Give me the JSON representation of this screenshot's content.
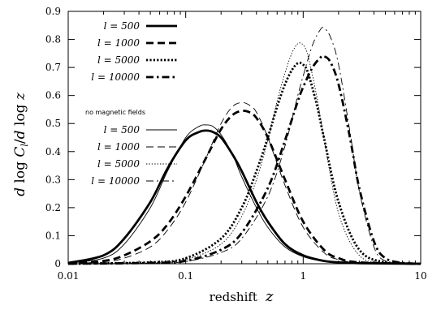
{
  "chart_data": {
    "type": "line",
    "x_scale": "log",
    "xlim": [
      0.01,
      10
    ],
    "ylim": [
      0,
      0.9
    ],
    "x_ticks": [
      {
        "value": 0.01,
        "label": "0.01"
      },
      {
        "value": 0.1,
        "label": "0.1"
      },
      {
        "value": 1,
        "label": "1"
      },
      {
        "value": 10,
        "label": "10"
      }
    ],
    "y_ticks": [
      {
        "value": 0,
        "label": "0"
      },
      {
        "value": 0.1,
        "label": "0.1"
      },
      {
        "value": 0.2,
        "label": "0.2"
      },
      {
        "value": 0.3,
        "label": "0.3"
      },
      {
        "value": 0.4,
        "label": "0.4"
      },
      {
        "value": 0.5,
        "label": "0.5"
      },
      {
        "value": 0.6,
        "label": "0.6"
      },
      {
        "value": 0.7,
        "label": "0.7"
      },
      {
        "value": 0.8,
        "label": "0.8"
      },
      {
        "value": 0.9,
        "label": "0.9"
      }
    ],
    "xlabel": "redshift",
    "xlabel_symbol": "z",
    "ylabel": "d log C_l / d log z",
    "grid": false,
    "legend_position": "top-left",
    "legend_note": "no magnetic fields",
    "series": [
      {
        "name": "l = 500",
        "l": "500",
        "style": "solid",
        "weight": "thick",
        "x": [
          0.01,
          0.02,
          0.03,
          0.05,
          0.07,
          0.1,
          0.13,
          0.15,
          0.17,
          0.2,
          0.25,
          0.3,
          0.4,
          0.5,
          0.7,
          1.0,
          1.5,
          2.0,
          3.0,
          10
        ],
        "y": [
          0.003,
          0.03,
          0.09,
          0.22,
          0.34,
          0.44,
          0.47,
          0.475,
          0.47,
          0.45,
          0.39,
          0.33,
          0.22,
          0.15,
          0.07,
          0.03,
          0.01,
          0.005,
          0.002,
          0.0
        ]
      },
      {
        "name": "l = 1000",
        "l": "1000",
        "style": "dashed",
        "weight": "thick",
        "x": [
          0.01,
          0.02,
          0.03,
          0.05,
          0.07,
          0.1,
          0.15,
          0.2,
          0.25,
          0.3,
          0.35,
          0.4,
          0.5,
          0.7,
          1.0,
          1.5,
          2.0,
          3.0,
          10
        ],
        "y": [
          0.002,
          0.01,
          0.03,
          0.08,
          0.14,
          0.24,
          0.38,
          0.48,
          0.53,
          0.545,
          0.54,
          0.52,
          0.45,
          0.3,
          0.15,
          0.05,
          0.02,
          0.005,
          0.0
        ]
      },
      {
        "name": "l = 5000",
        "l": "5000",
        "style": "dotted",
        "weight": "thick",
        "x": [
          0.01,
          0.05,
          0.1,
          0.2,
          0.3,
          0.4,
          0.5,
          0.6,
          0.7,
          0.8,
          0.9,
          1.0,
          1.1,
          1.3,
          1.5,
          2.0,
          3.0,
          5.0,
          10
        ],
        "y": [
          0.0,
          0.005,
          0.02,
          0.09,
          0.2,
          0.33,
          0.45,
          0.56,
          0.64,
          0.69,
          0.715,
          0.71,
          0.68,
          0.57,
          0.45,
          0.22,
          0.05,
          0.005,
          0.0
        ]
      },
      {
        "name": "l = 10000",
        "l": "10000",
        "style": "dashdot",
        "weight": "thick",
        "x": [
          0.01,
          0.05,
          0.1,
          0.2,
          0.3,
          0.5,
          0.7,
          0.9,
          1.0,
          1.2,
          1.4,
          1.5,
          1.7,
          2.0,
          2.5,
          3.0,
          4.0,
          5.0,
          7.0,
          10
        ],
        "y": [
          0.0,
          0.003,
          0.01,
          0.05,
          0.11,
          0.27,
          0.44,
          0.58,
          0.63,
          0.7,
          0.735,
          0.74,
          0.72,
          0.64,
          0.45,
          0.27,
          0.08,
          0.02,
          0.003,
          0.0
        ]
      },
      {
        "name": "l = 500",
        "l": "500",
        "style": "solid",
        "weight": "thin",
        "x": [
          0.01,
          0.02,
          0.03,
          0.05,
          0.07,
          0.1,
          0.13,
          0.15,
          0.17,
          0.2,
          0.25,
          0.3,
          0.4,
          0.5,
          0.7,
          1.0,
          1.5,
          2.0,
          3.0,
          10
        ],
        "y": [
          0.002,
          0.02,
          0.07,
          0.2,
          0.33,
          0.45,
          0.49,
          0.495,
          0.49,
          0.46,
          0.39,
          0.31,
          0.2,
          0.13,
          0.06,
          0.025,
          0.008,
          0.004,
          0.001,
          0.0
        ]
      },
      {
        "name": "l = 1000",
        "l": "1000",
        "style": "dashed",
        "weight": "thin",
        "x": [
          0.01,
          0.02,
          0.03,
          0.05,
          0.07,
          0.1,
          0.15,
          0.2,
          0.25,
          0.3,
          0.35,
          0.4,
          0.5,
          0.7,
          1.0,
          1.5,
          2.0,
          3.0,
          10
        ],
        "y": [
          0.001,
          0.007,
          0.02,
          0.06,
          0.12,
          0.22,
          0.38,
          0.5,
          0.56,
          0.575,
          0.565,
          0.54,
          0.45,
          0.28,
          0.13,
          0.04,
          0.015,
          0.004,
          0.0
        ]
      },
      {
        "name": "l = 5000",
        "l": "5000",
        "style": "dotted",
        "weight": "thin",
        "x": [
          0.01,
          0.05,
          0.1,
          0.2,
          0.3,
          0.4,
          0.5,
          0.6,
          0.7,
          0.8,
          0.9,
          1.0,
          1.1,
          1.3,
          1.5,
          2.0,
          3.0,
          5.0,
          10
        ],
        "y": [
          0.0,
          0.003,
          0.015,
          0.07,
          0.17,
          0.3,
          0.44,
          0.58,
          0.68,
          0.75,
          0.785,
          0.78,
          0.74,
          0.6,
          0.45,
          0.18,
          0.03,
          0.002,
          0.0
        ]
      },
      {
        "name": "l = 10000",
        "l": "10000",
        "style": "dashdot",
        "weight": "thin",
        "x": [
          0.01,
          0.05,
          0.1,
          0.2,
          0.3,
          0.5,
          0.7,
          0.9,
          1.0,
          1.2,
          1.4,
          1.5,
          1.7,
          2.0,
          2.5,
          3.0,
          4.0,
          5.0,
          7.0,
          10
        ],
        "y": [
          0.0,
          0.002,
          0.008,
          0.04,
          0.09,
          0.24,
          0.42,
          0.6,
          0.67,
          0.78,
          0.835,
          0.84,
          0.81,
          0.71,
          0.47,
          0.26,
          0.06,
          0.01,
          0.001,
          0.0
        ]
      }
    ]
  }
}
